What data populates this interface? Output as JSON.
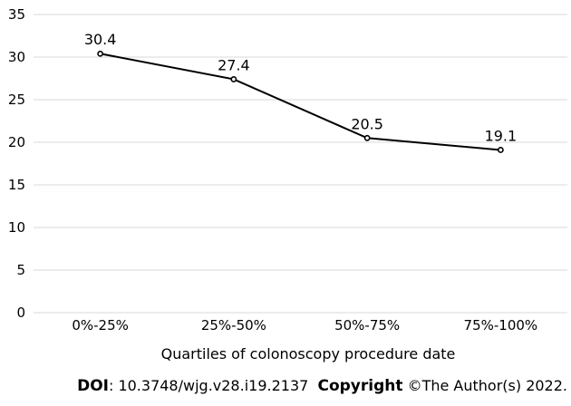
{
  "chart_data": {
    "type": "line",
    "categories": [
      "0%-25%",
      "25%-50%",
      "50%-75%",
      "75%-100%"
    ],
    "series": [
      {
        "values": [
          30.4,
          27.4,
          20.5,
          19.1
        ]
      }
    ],
    "data_labels": [
      "30.4",
      "27.4",
      "20.5",
      "19.1"
    ],
    "xlabel": "Quartiles of colonoscopy procedure date",
    "ylabel": "",
    "ylim": [
      0,
      35
    ],
    "yticks": [
      0,
      5,
      10,
      15,
      20,
      25,
      30,
      35
    ],
    "grid": true,
    "legend": "none",
    "line_color": "#000000"
  },
  "footer": {
    "doi_label": "DOI",
    "doi_value": ": 10.3748/wjg.v28.i19.2137",
    "copyright_label": "Copyright",
    "copyright_value": " ©The Author(s) 2022."
  }
}
